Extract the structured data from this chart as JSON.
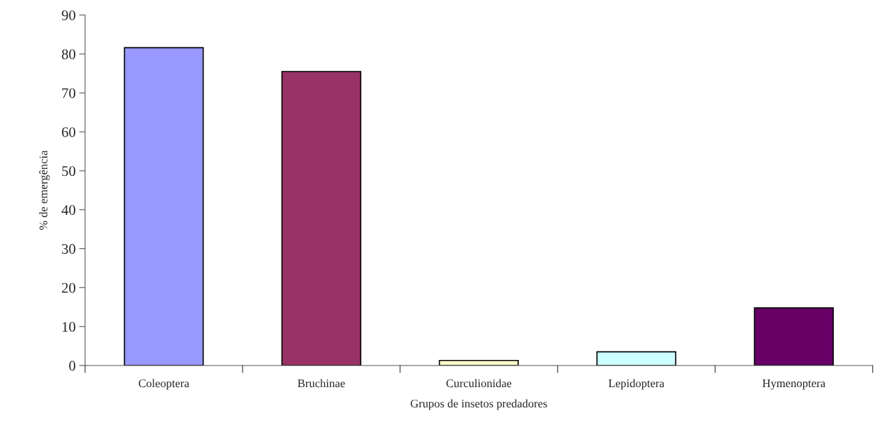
{
  "chart_data": {
    "type": "bar",
    "xlabel": "Grupos de insetos predadores",
    "ylabel": "% de emergência",
    "categories": [
      "Coleoptera",
      "Bruchinae",
      "Curculionidae",
      "Lepidoptera",
      "Hymenoptera"
    ],
    "values": [
      81.6,
      75.5,
      1.3,
      3.5,
      14.8
    ],
    "colors": [
      "#9999ff",
      "#993366",
      "#ffffcc",
      "#ccffff",
      "#660066"
    ],
    "ylim": [
      0,
      90
    ],
    "yticks": [
      0,
      10,
      20,
      30,
      40,
      50,
      60,
      70,
      80,
      90
    ],
    "grid": false
  }
}
